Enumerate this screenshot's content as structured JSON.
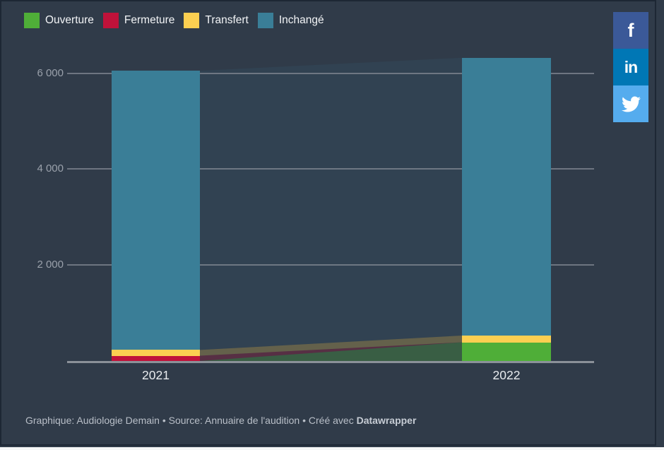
{
  "colors": {
    "panel_background": "#303b49",
    "frame_border": "#1d2734",
    "gridline": "#838a94",
    "facebook_blue": "#3b5998",
    "linkedin_blue": "#0077b5",
    "twitter_blue": "#55acee"
  },
  "chart_data": {
    "type": "bar",
    "stacked": true,
    "connectors": true,
    "grid": "horizontal",
    "legend_position": "top",
    "categories": [
      "2021",
      "2022"
    ],
    "series": [
      {
        "name": "Ouverture",
        "color": "#4fae38",
        "connector_opacity": 0.3,
        "values": [
          0,
          390
        ]
      },
      {
        "name": "Fermeture",
        "color": "#c0123a",
        "connector_opacity": 0.28,
        "values": [
          110,
          0
        ]
      },
      {
        "name": "Transfert",
        "color": "#fbcf51",
        "connector_opacity": 0.26,
        "values": [
          120,
          140
        ]
      },
      {
        "name": "Inchangé",
        "color": "#3a7e97",
        "connector_opacity": 0.12,
        "values": [
          5820,
          5790
        ]
      }
    ],
    "totals": [
      6050,
      6320
    ],
    "ylim": [
      0,
      6500
    ],
    "yticks": [
      {
        "value": 2000,
        "label": "2 000"
      },
      {
        "value": 4000,
        "label": "4 000"
      },
      {
        "value": 6000,
        "label": "6 000"
      }
    ]
  },
  "footer": {
    "graphique_label": "Graphique:",
    "graphique_value": "Audiologie Demain",
    "separator": "•",
    "source_label": "Source:",
    "source_value": "Annuaire de l'audition",
    "created_with": "Créé avec",
    "tool": "Datawrapper"
  },
  "social": {
    "facebook_glyph": "f",
    "linkedin_glyph": "in"
  }
}
